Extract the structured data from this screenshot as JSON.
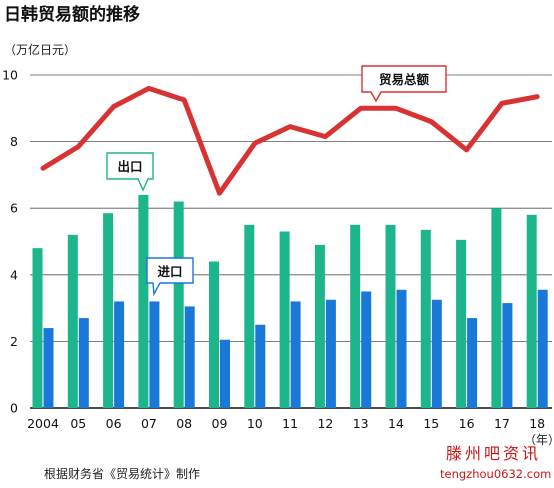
{
  "chart_data": {
    "type": "bar",
    "title": "日韩贸易额的推移",
    "unit_label": "（万亿日元）",
    "x_unit_label": "（年）",
    "categories": [
      "2004",
      "05",
      "06",
      "07",
      "08",
      "09",
      "10",
      "11",
      "12",
      "13",
      "14",
      "15",
      "16",
      "17",
      "18"
    ],
    "ylim": [
      0,
      10
    ],
    "yticks": [
      "0",
      "2",
      "4",
      "6",
      "8",
      "10"
    ],
    "grid": true,
    "series": [
      {
        "name": "出口",
        "type": "bar",
        "color": "#1cb58c",
        "values": [
          4.8,
          5.2,
          5.85,
          6.4,
          6.2,
          4.4,
          5.5,
          5.3,
          4.9,
          5.5,
          5.5,
          5.35,
          5.05,
          6.0,
          5.8
        ]
      },
      {
        "name": "进口",
        "type": "bar",
        "color": "#1a78d8",
        "values": [
          2.4,
          2.7,
          3.2,
          3.2,
          3.05,
          2.05,
          2.5,
          3.2,
          3.25,
          3.5,
          3.55,
          3.25,
          2.7,
          3.15,
          3.55
        ]
      },
      {
        "name": "贸易总额",
        "type": "line",
        "color": "#d83232",
        "values": [
          7.2,
          7.85,
          9.05,
          9.6,
          9.25,
          6.45,
          7.95,
          8.45,
          8.15,
          9.0,
          9.0,
          8.6,
          7.75,
          9.15,
          9.35
        ]
      }
    ],
    "source": "根据财务省《贸易统计》制作"
  },
  "watermark": {
    "line1": "滕州吧资讯",
    "line2": "tengzhou0632.com"
  }
}
